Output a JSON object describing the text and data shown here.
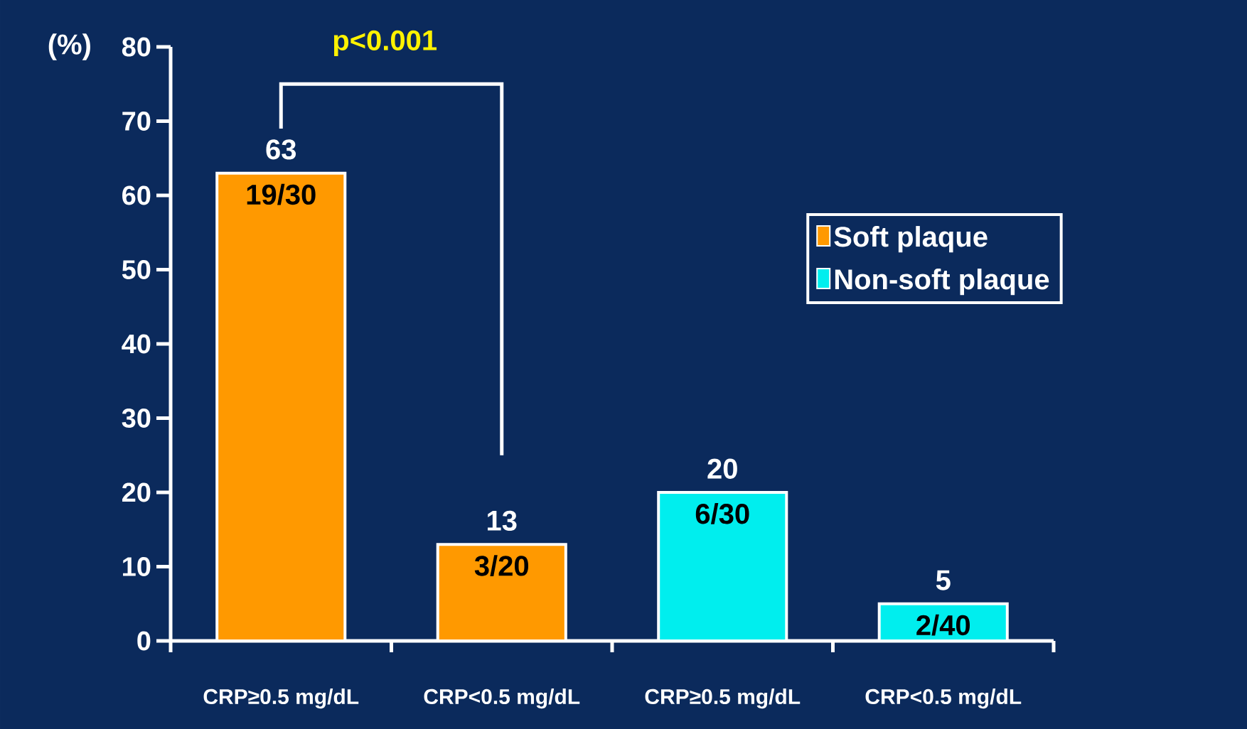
{
  "chart_data": {
    "type": "bar",
    "ylabel": "(%)",
    "categories": [
      "CRP≥0.5 mg/dL",
      "CRP<0.5 mg/dL",
      "CRP≥0.5 mg/dL",
      "CRP<0.5 mg/dL"
    ],
    "series": [
      {
        "name": "Soft plaque",
        "color": "#ff9900",
        "values": [
          63,
          13,
          null,
          null
        ]
      },
      {
        "name": "Non-soft plaque",
        "color": "#00eeee",
        "values": [
          null,
          null,
          20,
          5
        ]
      }
    ],
    "ylim": [
      0,
      80
    ],
    "yticks": [
      0,
      10,
      20,
      30,
      40,
      50,
      60,
      70,
      80
    ],
    "data_labels": true,
    "legend": "right",
    "grid": false,
    "annotations": [
      "p<0.001",
      "19/30",
      "3/20",
      "6/30",
      "2/40"
    ]
  }
}
